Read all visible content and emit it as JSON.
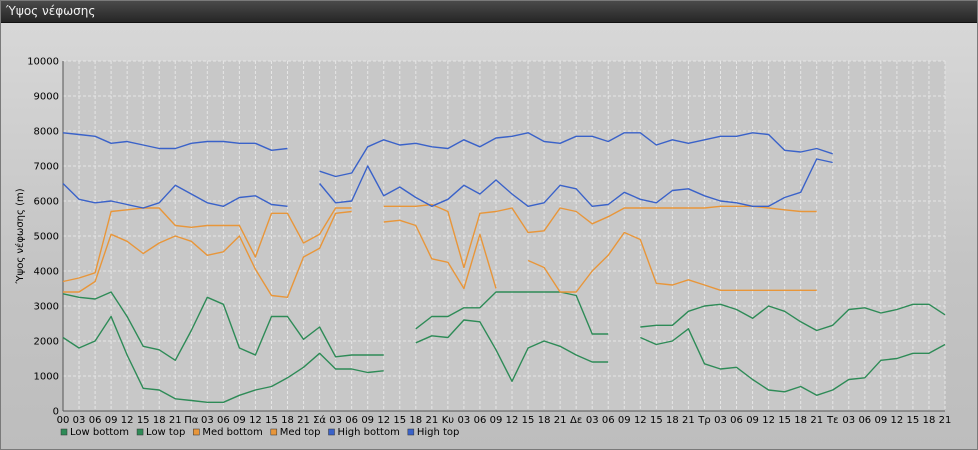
{
  "window": {
    "title": "Ύψος νέφωσης"
  },
  "colors": {
    "low": "#2e8b57",
    "med": "#e8963a",
    "high": "#3a62c9"
  },
  "chart_data": {
    "type": "line",
    "title": "",
    "ylabel": "Ύψος νέφωσης (m)",
    "xlabel": "",
    "ylim": [
      0,
      10000
    ],
    "yticks": [
      0,
      1000,
      2000,
      3000,
      4000,
      5000,
      6000,
      7000,
      8000,
      9000,
      10000
    ],
    "grid": true,
    "legend_position": "bottom-left",
    "x_tick_labels": [
      "00",
      "03",
      "06",
      "09",
      "12",
      "15",
      "18",
      "21",
      "Πα",
      "03",
      "06",
      "09",
      "12",
      "15",
      "18",
      "21",
      "Σά",
      "03",
      "06",
      "09",
      "12",
      "15",
      "18",
      "21",
      "Κυ",
      "03",
      "06",
      "09",
      "12",
      "15",
      "18",
      "21",
      "Δε",
      "03",
      "06",
      "09",
      "12",
      "15",
      "18",
      "21",
      "Τρ",
      "03",
      "06",
      "09",
      "12",
      "15",
      "18",
      "21",
      "Τε",
      "03",
      "06",
      "09",
      "12",
      "15",
      "18",
      "21"
    ],
    "series": [
      {
        "name": "Low bottom",
        "color_key": "low",
        "values": [
          3350,
          3250,
          3200,
          3400,
          2700,
          1850,
          1750,
          1450,
          2300,
          3250,
          3050,
          1800,
          1600,
          2700,
          2700,
          2050,
          2400,
          1550,
          1600,
          1600,
          1600,
          null,
          1950,
          2150,
          2100,
          2600,
          2550,
          1750,
          850,
          1800,
          2000,
          1850,
          1600,
          1400,
          1400,
          null,
          2100,
          1900,
          2000,
          2350,
          1350,
          1200,
          1250,
          900,
          600,
          550,
          700,
          450,
          600,
          900,
          950,
          1450,
          1500,
          1650,
          1650,
          1900
        ]
      },
      {
        "name": "Low top",
        "color_key": "low",
        "values": [
          2100,
          1800,
          2000,
          2700,
          1600,
          650,
          600,
          350,
          300,
          250,
          250,
          450,
          600,
          700,
          950,
          1250,
          1650,
          1200,
          1200,
          1100,
          1150,
          null,
          2350,
          2700,
          2700,
          2950,
          2950,
          3400,
          3400,
          3400,
          3400,
          3400,
          3300,
          2200,
          2200,
          null,
          2400,
          2450,
          2450,
          2850,
          3000,
          3050,
          2900,
          2650,
          3000,
          2850,
          2550,
          2300,
          2450,
          2900,
          2950,
          2800,
          2900,
          3050,
          3050,
          2750
        ]
      },
      {
        "name": "Med bottom",
        "color_key": "med",
        "values": [
          3400,
          3400,
          3700,
          5050,
          4850,
          4500,
          4800,
          5000,
          4850,
          4450,
          4550,
          5000,
          4050,
          3300,
          3250,
          4400,
          4650,
          5650,
          5700,
          null,
          5400,
          5450,
          5300,
          4350,
          4250,
          3500,
          5050,
          3500,
          null,
          4300,
          4100,
          3400,
          3400,
          4000,
          4450,
          5100,
          4900,
          3650,
          3600,
          3750,
          3600,
          3450,
          3450,
          3450,
          3450,
          3450,
          3450,
          3450,
          null,
          null,
          null,
          null,
          null,
          null,
          null,
          null
        ]
      },
      {
        "name": "Med top",
        "color_key": "med",
        "values": [
          3700,
          3800,
          3950,
          5700,
          5750,
          5800,
          5800,
          5300,
          5250,
          5300,
          5300,
          5300,
          4400,
          5650,
          5650,
          4800,
          5050,
          5800,
          5800,
          null,
          5850,
          5850,
          5850,
          5900,
          5700,
          4100,
          5650,
          5700,
          5800,
          5100,
          5150,
          5800,
          5700,
          5350,
          5550,
          5800,
          5800,
          5800,
          5800,
          5800,
          5800,
          5850,
          5850,
          5850,
          5800,
          5750,
          5700,
          5700,
          null,
          null,
          null,
          null,
          null,
          null,
          null,
          null
        ]
      },
      {
        "name": "High bottom",
        "color_key": "high",
        "values": [
          6500,
          6050,
          5950,
          6000,
          5900,
          5800,
          5950,
          6450,
          6200,
          5950,
          5850,
          6100,
          6150,
          5900,
          5850,
          null,
          6500,
          5950,
          6000,
          7000,
          6150,
          6400,
          6100,
          5850,
          6050,
          6450,
          6200,
          6600,
          6200,
          5850,
          5950,
          6450,
          6350,
          5850,
          5900,
          6250,
          6050,
          5950,
          6300,
          6350,
          6150,
          6000,
          5950,
          5850,
          5850,
          6100,
          6250,
          7200,
          7100,
          null,
          null,
          null,
          null,
          null,
          null,
          null
        ]
      },
      {
        "name": "High top",
        "color_key": "high",
        "values": [
          7950,
          7900,
          7850,
          7650,
          7700,
          7600,
          7500,
          7500,
          7650,
          7700,
          7700,
          7650,
          7650,
          7450,
          7500,
          null,
          6850,
          6700,
          6800,
          7550,
          7750,
          7600,
          7650,
          7550,
          7500,
          7750,
          7550,
          7800,
          7850,
          7950,
          7700,
          7650,
          7850,
          7850,
          7700,
          7950,
          7950,
          7600,
          7750,
          7650,
          7750,
          7850,
          7850,
          7950,
          7900,
          7450,
          7400,
          7500,
          7350,
          null,
          null,
          null,
          null,
          null,
          null,
          null
        ]
      }
    ]
  }
}
